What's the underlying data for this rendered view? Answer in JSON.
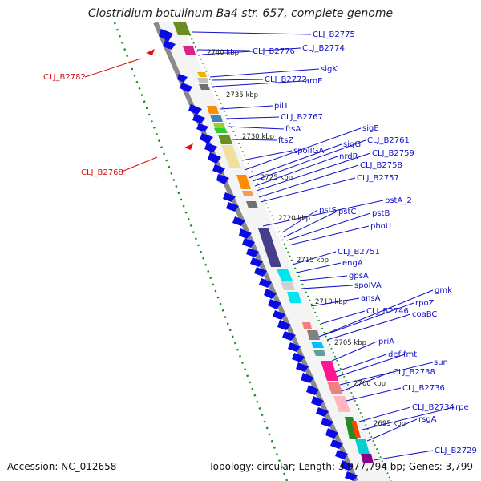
{
  "title": "Clostridium botulinum Ba4 str. 657, complete genome",
  "footer": {
    "accession": "Accession: NC_012658",
    "topology": "Topology: circular; Length: 3,977,794 bp; Genes: 3,799"
  },
  "colors": {
    "label_blue": "#1010c8",
    "label_red": "#d01010",
    "gene_blue": "#0a0ae6",
    "backbone": "#8a8a8a",
    "ruler_green": "#1a8a1a"
  },
  "ticks": [
    "2740 kbp",
    "2735 kbp",
    "2730 kbp",
    "2725 kbp",
    "2720 kbp",
    "2715 kbp",
    "2710 kbp",
    "2705 kbp",
    "2700 kbp",
    "2695 kbp"
  ],
  "gene_labels": [
    "CLJ_B2775",
    "CLJ_B2776",
    "CLJ_B2774",
    "sigK",
    "CLJ_B2772",
    "aroE",
    "pilT",
    "CLJ_B2767",
    "ftsA",
    "ftsZ",
    "spoIIGA",
    "sigE",
    "sigG",
    "CLJ_B2761",
    "nrdR",
    "CLJ_B2759",
    "CLJ_B2758",
    "CLJ_B2757",
    "pstA_2",
    "pstS",
    "pstC",
    "pstB",
    "phoU",
    "CLJ_B2751",
    "engA",
    "gpsA",
    "spoIVA",
    "gmk",
    "ansA",
    "rpoZ",
    "CLJ_B2746",
    "coaBC",
    "priA",
    "def",
    "fmt",
    "sun",
    "CLJ_B2738",
    "CLJ_B2736",
    "CLJ_B2734",
    "rpe",
    "rsgA",
    "CLJ_B2729"
  ],
  "red_labels": [
    "CLJ_B2782",
    "CLJ_B2768"
  ]
}
